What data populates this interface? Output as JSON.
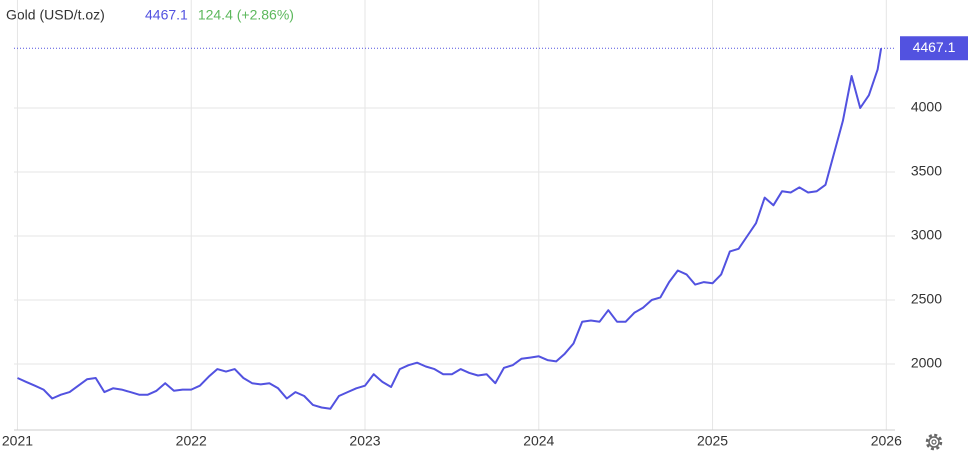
{
  "chart_data": {
    "type": "line",
    "title": "Gold (USD/t.oz)",
    "change": "124.4 (+2.86%)",
    "x": [
      2021.0,
      2021.05,
      2021.1,
      2021.15,
      2021.2,
      2021.25,
      2021.3,
      2021.35,
      2021.4,
      2021.45,
      2021.5,
      2021.55,
      2021.6,
      2021.65,
      2021.7,
      2021.75,
      2021.8,
      2021.85,
      2021.9,
      2021.95,
      2022.0,
      2022.05,
      2022.1,
      2022.15,
      2022.2,
      2022.25,
      2022.3,
      2022.35,
      2022.4,
      2022.45,
      2022.5,
      2022.55,
      2022.6,
      2022.65,
      2022.7,
      2022.75,
      2022.8,
      2022.85,
      2022.9,
      2022.95,
      2023.0,
      2023.05,
      2023.1,
      2023.15,
      2023.2,
      2023.25,
      2023.3,
      2023.35,
      2023.4,
      2023.45,
      2023.5,
      2023.55,
      2023.6,
      2023.65,
      2023.7,
      2023.75,
      2023.8,
      2023.85,
      2023.9,
      2023.95,
      2024.0,
      2024.05,
      2024.1,
      2024.15,
      2024.2,
      2024.25,
      2024.3,
      2024.35,
      2024.4,
      2024.45,
      2024.5,
      2024.55,
      2024.6,
      2024.65,
      2024.7,
      2024.75,
      2024.8,
      2024.85,
      2024.9,
      2024.95,
      2025.0,
      2025.05,
      2025.1,
      2025.15,
      2025.2,
      2025.25,
      2025.3,
      2025.35,
      2025.4,
      2025.45,
      2025.5,
      2025.55,
      2025.6,
      2025.65,
      2025.7,
      2025.75,
      2025.8,
      2025.85,
      2025.9,
      2025.95,
      2025.97
    ],
    "series": [
      {
        "name": "Gold",
        "color": "#5252e0",
        "values": [
          1890,
          1860,
          1830,
          1800,
          1730,
          1760,
          1780,
          1830,
          1880,
          1890,
          1780,
          1810,
          1800,
          1780,
          1760,
          1760,
          1790,
          1850,
          1790,
          1800,
          1800,
          1830,
          1900,
          1960,
          1940,
          1960,
          1890,
          1850,
          1840,
          1850,
          1810,
          1730,
          1780,
          1750,
          1680,
          1660,
          1650,
          1750,
          1780,
          1810,
          1830,
          1920,
          1860,
          1820,
          1960,
          1990,
          2010,
          1980,
          1960,
          1920,
          1920,
          1960,
          1930,
          1910,
          1920,
          1850,
          1970,
          1990,
          2040,
          2050,
          2060,
          2030,
          2020,
          2080,
          2160,
          2330,
          2340,
          2330,
          2420,
          2330,
          2330,
          2400,
          2440,
          2500,
          2520,
          2640,
          2730,
          2700,
          2620,
          2640,
          2630,
          2700,
          2880,
          2900,
          3000,
          3100,
          3300,
          3240,
          3350,
          3340,
          3380,
          3340,
          3350,
          3400,
          3650,
          3900,
          4250,
          4000,
          4100,
          4300,
          4467.1
        ]
      }
    ],
    "xlim": [
      2020.98,
      2026.05
    ],
    "xticks": [
      2021,
      2022,
      2023,
      2024,
      2025,
      2026
    ],
    "ylim": [
      1484,
      4766
    ],
    "yticks": [
      2000,
      2500,
      3000,
      3500,
      4000
    ],
    "grid": true
  }
}
